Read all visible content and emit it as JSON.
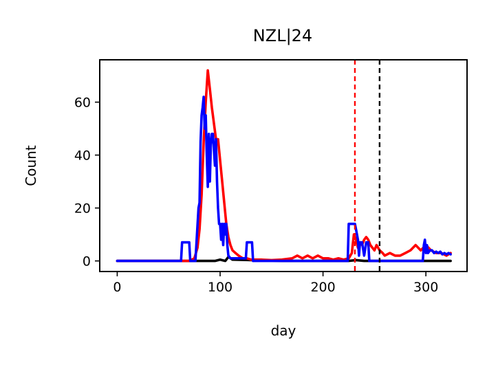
{
  "chart_data": {
    "type": "line",
    "title": "NZL|24",
    "xlabel": "day",
    "ylabel": "Count",
    "xlim": [
      -17,
      340
    ],
    "ylim": [
      -4,
      76
    ],
    "xticks": [
      0,
      100,
      200,
      300
    ],
    "yticks": [
      0,
      20,
      40,
      60
    ],
    "grid": false,
    "series": [
      {
        "color": "#000000",
        "x": [
          0,
          95,
          100,
          105,
          108,
          112,
          160,
          200,
          225,
          232,
          240,
          300,
          310,
          324
        ],
        "y": [
          0,
          0,
          0.5,
          0,
          1.5,
          0.5,
          0,
          0,
          0,
          0.3,
          0,
          0,
          0,
          0
        ]
      },
      {
        "color": "#ff0000",
        "x": [
          0,
          60,
          70,
          75,
          78,
          80,
          82,
          84,
          86,
          88,
          90,
          92,
          94,
          96,
          98,
          100,
          102,
          104,
          106,
          108,
          110,
          112,
          115,
          118,
          122,
          126,
          130,
          140,
          150,
          160,
          170,
          175,
          180,
          185,
          190,
          195,
          200,
          205,
          210,
          215,
          220,
          225,
          228,
          230,
          232,
          234,
          236,
          238,
          240,
          242,
          244,
          246,
          248,
          250,
          252,
          255,
          258,
          260,
          265,
          270,
          275,
          280,
          285,
          290,
          295,
          300,
          305,
          310,
          315,
          320,
          324
        ],
        "y": [
          0,
          0,
          0,
          1,
          5,
          12,
          25,
          45,
          60,
          72,
          65,
          58,
          52,
          46,
          46,
          38,
          30,
          22,
          14,
          9,
          6,
          4,
          3,
          2,
          1,
          1,
          0.5,
          0.5,
          0.3,
          0.5,
          1,
          2,
          1,
          2,
          1,
          2,
          1,
          1,
          0.5,
          1,
          0.5,
          1,
          3,
          10,
          8,
          5,
          7,
          6,
          8,
          9,
          8,
          6,
          5,
          4,
          6,
          4,
          3,
          2,
          3,
          2,
          2,
          3,
          4,
          6,
          4,
          6,
          4,
          3,
          3,
          2,
          3
        ]
      },
      {
        "color": "#0000ff",
        "x": [
          0,
          62,
          63,
          70,
          71,
          75,
          76,
          79,
          80,
          81,
          82,
          83,
          84,
          85,
          86,
          87,
          88,
          89,
          90,
          91,
          92,
          93,
          94,
          95,
          96,
          97,
          98,
          99,
          100,
          101,
          102,
          103,
          104,
          105,
          106,
          107,
          108,
          110,
          125,
          126,
          131,
          132,
          160,
          200,
          224,
          225,
          231,
          232,
          234,
          235,
          236,
          238,
          240,
          242,
          244,
          245,
          255,
          297,
          298,
          299,
          300,
          301,
          302,
          304,
          306,
          308,
          310,
          312,
          314,
          316,
          318,
          320,
          322,
          324
        ],
        "y": [
          0,
          0,
          7,
          7,
          0,
          0,
          0,
          20,
          22,
          45,
          55,
          58,
          62,
          50,
          55,
          40,
          28,
          48,
          30,
          44,
          48,
          48,
          42,
          36,
          46,
          30,
          20,
          14,
          14,
          8,
          14,
          6,
          14,
          10,
          14,
          6,
          2,
          1,
          1,
          7,
          7,
          0,
          0,
          0,
          0,
          14,
          14,
          12,
          8,
          2,
          7,
          7,
          2,
          7,
          7,
          0,
          0,
          0,
          6,
          8,
          3,
          6,
          3,
          4,
          4,
          3,
          3.5,
          3,
          3.5,
          2.5,
          3,
          2.5,
          3,
          2.5
        ]
      }
    ],
    "vlines": [
      {
        "x": 231,
        "color": "#ff0000",
        "style": "dashed"
      },
      {
        "x": 255,
        "color": "#000000",
        "style": "dashed"
      }
    ]
  }
}
